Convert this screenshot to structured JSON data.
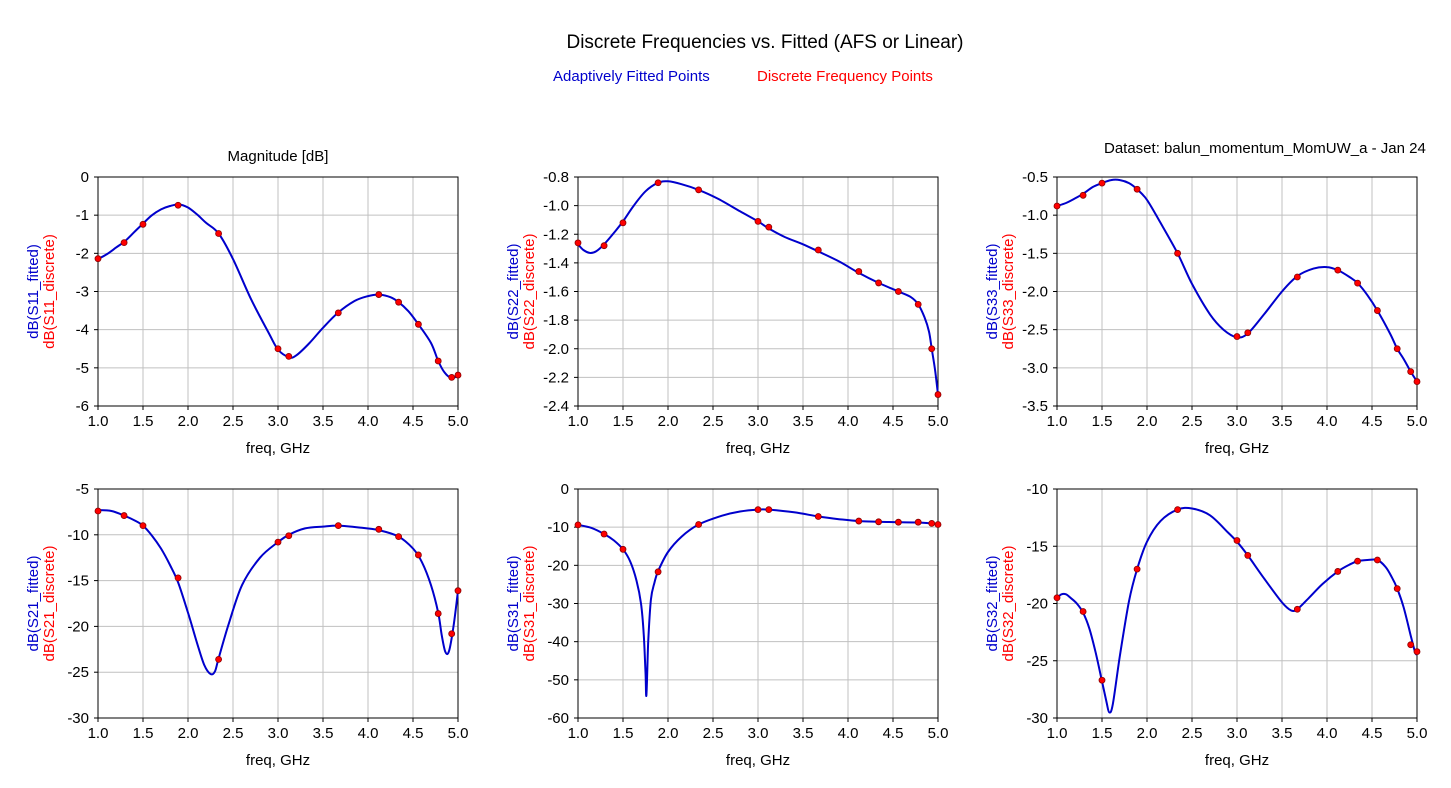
{
  "page": {
    "title": "Discrete Frequencies vs. Fitted (AFS or Linear)",
    "legend_fitted": "Adaptively Fitted Points",
    "legend_discrete": "Discrete Frequency Points",
    "header_left": "Magnitude [dB]",
    "header_right": "Dataset: balun_momentum_MomUW_a - Jan 24"
  },
  "colors": {
    "fitted": "#0000cc",
    "discrete": "#ff0000",
    "grid": "#c0c0c0",
    "frame": "#000000"
  },
  "chart_data": [
    {
      "type": "line",
      "xlabel": "freq, GHz",
      "ylabel_fitted": "dB(S11_fitted)",
      "ylabel_discrete": "dB(S11_discrete)",
      "xlim": [
        1.0,
        5.0
      ],
      "ylim": [
        -6,
        0
      ],
      "xticks": [
        1.0,
        1.5,
        2.0,
        2.5,
        3.0,
        3.5,
        4.0,
        4.5,
        5.0
      ],
      "xtick_labels": [
        "1.0",
        "1.5",
        "2.0",
        "2.5",
        "3.0",
        "3.5",
        "4.0",
        "4.5",
        "5.0"
      ],
      "yticks": [
        0,
        -1,
        -2,
        -3,
        -4,
        -5,
        -6
      ],
      "ytick_labels": [
        "0",
        "-1",
        "-2",
        "-3",
        "-4",
        "-5",
        "-6"
      ],
      "grid": true,
      "series": [
        {
          "name": "dB(S11_fitted)",
          "x": [
            1.0,
            1.1,
            1.2,
            1.3,
            1.4,
            1.5,
            1.6,
            1.7,
            1.8,
            1.9,
            2.0,
            2.1,
            2.2,
            2.34,
            2.5,
            2.7,
            2.9,
            3.0,
            3.12,
            3.2,
            3.35,
            3.5,
            3.67,
            3.85,
            4.0,
            4.12,
            4.25,
            4.34,
            4.45,
            4.56,
            4.7,
            4.78,
            4.85,
            4.93,
            5.0
          ],
          "y": [
            -2.15,
            -2.02,
            -1.85,
            -1.68,
            -1.45,
            -1.22,
            -1.0,
            -0.85,
            -0.76,
            -0.72,
            -0.8,
            -0.98,
            -1.2,
            -1.48,
            -2.15,
            -3.2,
            -4.1,
            -4.52,
            -4.72,
            -4.68,
            -4.35,
            -3.95,
            -3.55,
            -3.25,
            -3.12,
            -3.08,
            -3.15,
            -3.28,
            -3.52,
            -3.86,
            -4.35,
            -4.82,
            -5.12,
            -5.27,
            -5.2
          ]
        },
        {
          "name": "dB(S11_discrete)",
          "x": [
            1.0,
            1.29,
            1.5,
            1.89,
            2.34,
            3.0,
            3.12,
            3.67,
            4.12,
            4.34,
            4.56,
            4.78,
            4.93,
            5.0
          ],
          "y": [
            -2.14,
            -1.72,
            -1.24,
            -0.74,
            -1.48,
            -4.5,
            -4.7,
            -3.56,
            -3.08,
            -3.28,
            -3.86,
            -4.82,
            -5.25,
            -5.19
          ]
        }
      ]
    },
    {
      "type": "line",
      "xlabel": "freq, GHz",
      "ylabel_fitted": "dB(S22_fitted)",
      "ylabel_discrete": "dB(S22_discrete)",
      "xlim": [
        1.0,
        5.0
      ],
      "ylim": [
        -2.4,
        -0.8
      ],
      "xticks": [
        1.0,
        1.5,
        2.0,
        2.5,
        3.0,
        3.5,
        4.0,
        4.5,
        5.0
      ],
      "xtick_labels": [
        "1.0",
        "1.5",
        "2.0",
        "2.5",
        "3.0",
        "3.5",
        "4.0",
        "4.5",
        "5.0"
      ],
      "yticks": [
        -0.8,
        -1.0,
        -1.2,
        -1.4,
        -1.6,
        -1.8,
        -2.0,
        -2.2,
        -2.4
      ],
      "ytick_labels": [
        "-0.8",
        "-1.0",
        "-1.2",
        "-1.4",
        "-1.6",
        "-1.8",
        "-2.0",
        "-2.2",
        "-2.4"
      ],
      "grid": true,
      "series": [
        {
          "name": "dB(S22_fitted)",
          "x": [
            1.0,
            1.06,
            1.13,
            1.2,
            1.29,
            1.4,
            1.5,
            1.62,
            1.75,
            1.89,
            2.0,
            2.15,
            2.34,
            2.55,
            2.8,
            3.0,
            3.12,
            3.3,
            3.5,
            3.67,
            3.9,
            4.12,
            4.34,
            4.56,
            4.7,
            4.78,
            4.85,
            4.9,
            4.93,
            4.97,
            5.0
          ],
          "y": [
            -1.27,
            -1.31,
            -1.33,
            -1.32,
            -1.27,
            -1.19,
            -1.11,
            -1.0,
            -0.9,
            -0.84,
            -0.83,
            -0.85,
            -0.89,
            -0.95,
            -1.04,
            -1.11,
            -1.16,
            -1.22,
            -1.27,
            -1.32,
            -1.39,
            -1.47,
            -1.54,
            -1.6,
            -1.64,
            -1.69,
            -1.78,
            -1.88,
            -2.0,
            -2.16,
            -2.32
          ]
        },
        {
          "name": "dB(S22_discrete)",
          "x": [
            1.0,
            1.29,
            1.5,
            1.89,
            2.34,
            3.0,
            3.12,
            3.67,
            4.12,
            4.34,
            4.56,
            4.78,
            4.93,
            5.0
          ],
          "y": [
            -1.26,
            -1.28,
            -1.12,
            -0.84,
            -0.89,
            -1.11,
            -1.15,
            -1.31,
            -1.46,
            -1.54,
            -1.6,
            -1.69,
            -2.0,
            -2.32
          ]
        }
      ]
    },
    {
      "type": "line",
      "xlabel": "freq, GHz",
      "ylabel_fitted": "dB(S33_fitted)",
      "ylabel_discrete": "dB(S33_discrete)",
      "xlim": [
        1.0,
        5.0
      ],
      "ylim": [
        -3.5,
        -0.5
      ],
      "xticks": [
        1.0,
        1.5,
        2.0,
        2.5,
        3.0,
        3.5,
        4.0,
        4.5,
        5.0
      ],
      "xtick_labels": [
        "1.0",
        "1.5",
        "2.0",
        "2.5",
        "3.0",
        "3.5",
        "4.0",
        "4.5",
        "5.0"
      ],
      "yticks": [
        -0.5,
        -1.0,
        -1.5,
        -2.0,
        -2.5,
        -3.0,
        -3.5
      ],
      "ytick_labels": [
        "-0.5",
        "-1.0",
        "-1.5",
        "-2.0",
        "-2.5",
        "-3.0",
        "-3.5"
      ],
      "grid": true,
      "series": [
        {
          "name": "dB(S33_fitted)",
          "x": [
            1.0,
            1.1,
            1.2,
            1.29,
            1.4,
            1.5,
            1.6,
            1.7,
            1.8,
            1.89,
            2.0,
            2.15,
            2.34,
            2.5,
            2.7,
            2.85,
            3.0,
            3.12,
            3.3,
            3.5,
            3.67,
            3.85,
            4.0,
            4.12,
            4.25,
            4.34,
            4.45,
            4.56,
            4.7,
            4.78,
            4.85,
            4.93,
            5.0
          ],
          "y": [
            -0.88,
            -0.84,
            -0.78,
            -0.72,
            -0.63,
            -0.58,
            -0.54,
            -0.54,
            -0.58,
            -0.66,
            -0.8,
            -1.1,
            -1.5,
            -1.9,
            -2.3,
            -2.5,
            -2.6,
            -2.55,
            -2.3,
            -2.0,
            -1.8,
            -1.7,
            -1.68,
            -1.72,
            -1.81,
            -1.89,
            -2.05,
            -2.25,
            -2.55,
            -2.75,
            -2.88,
            -3.05,
            -3.18
          ]
        },
        {
          "name": "dB(S33_discrete)",
          "x": [
            1.0,
            1.29,
            1.5,
            1.89,
            2.34,
            3.0,
            3.12,
            3.67,
            4.12,
            4.34,
            4.56,
            4.78,
            4.93,
            5.0
          ],
          "y": [
            -0.88,
            -0.74,
            -0.58,
            -0.66,
            -1.5,
            -2.59,
            -2.54,
            -1.81,
            -1.72,
            -1.89,
            -2.25,
            -2.75,
            -3.05,
            -3.18
          ]
        }
      ]
    },
    {
      "type": "line",
      "xlabel": "freq, GHz",
      "ylabel_fitted": "dB(S21_fitted)",
      "ylabel_discrete": "dB(S21_discrete)",
      "xlim": [
        1.0,
        5.0
      ],
      "ylim": [
        -30,
        -5
      ],
      "xticks": [
        1.0,
        1.5,
        2.0,
        2.5,
        3.0,
        3.5,
        4.0,
        4.5,
        5.0
      ],
      "xtick_labels": [
        "1.0",
        "1.5",
        "2.0",
        "2.5",
        "3.0",
        "3.5",
        "4.0",
        "4.5",
        "5.0"
      ],
      "yticks": [
        -5,
        -10,
        -15,
        -20,
        -25,
        -30
      ],
      "ytick_labels": [
        "-5",
        "-10",
        "-15",
        "-20",
        "-25",
        "-30"
      ],
      "grid": true,
      "series": [
        {
          "name": "dB(S21_fitted)",
          "x": [
            1.0,
            1.15,
            1.29,
            1.4,
            1.5,
            1.6,
            1.7,
            1.8,
            1.89,
            2.0,
            2.1,
            2.18,
            2.25,
            2.3,
            2.34,
            2.45,
            2.6,
            2.8,
            3.0,
            3.12,
            3.3,
            3.5,
            3.67,
            3.9,
            4.12,
            4.34,
            4.5,
            4.6,
            4.7,
            4.78,
            4.82,
            4.86,
            4.9,
            4.95,
            5.0
          ],
          "y": [
            -7.3,
            -7.4,
            -7.9,
            -8.4,
            -9.0,
            -10.1,
            -11.5,
            -13.3,
            -15.2,
            -18.5,
            -21.8,
            -24.2,
            -25.2,
            -24.9,
            -23.5,
            -19.8,
            -15.5,
            -12.5,
            -10.8,
            -10.0,
            -9.3,
            -9.1,
            -9.0,
            -9.2,
            -9.5,
            -10.2,
            -11.5,
            -13.0,
            -15.5,
            -18.5,
            -21.0,
            -22.8,
            -22.7,
            -20.0,
            -16.1
          ]
        },
        {
          "name": "dB(S21_discrete)",
          "x": [
            1.0,
            1.29,
            1.5,
            1.89,
            2.34,
            3.0,
            3.12,
            3.67,
            4.12,
            4.34,
            4.56,
            4.78,
            4.93,
            5.0
          ],
          "y": [
            -7.4,
            -7.9,
            -9.0,
            -14.7,
            -23.6,
            -10.8,
            -10.1,
            -9.0,
            -9.4,
            -10.2,
            -12.2,
            -18.6,
            -20.8,
            -16.1
          ]
        }
      ]
    },
    {
      "type": "line",
      "xlabel": "freq, GHz",
      "ylabel_fitted": "dB(S31_fitted)",
      "ylabel_discrete": "dB(S31_discrete)",
      "xlim": [
        1.0,
        5.0
      ],
      "ylim": [
        -60,
        0
      ],
      "xticks": [
        1.0,
        1.5,
        2.0,
        2.5,
        3.0,
        3.5,
        4.0,
        4.5,
        5.0
      ],
      "xtick_labels": [
        "1.0",
        "1.5",
        "2.0",
        "2.5",
        "3.0",
        "3.5",
        "4.0",
        "4.5",
        "5.0"
      ],
      "yticks": [
        0,
        -10,
        -20,
        -30,
        -40,
        -50,
        -60
      ],
      "ytick_labels": [
        "0",
        "-10",
        "-20",
        "-30",
        "-40",
        "-50",
        "-60"
      ],
      "grid": true,
      "series": [
        {
          "name": "dB(S31_fitted)",
          "x": [
            1.0,
            1.15,
            1.29,
            1.4,
            1.5,
            1.58,
            1.65,
            1.7,
            1.73,
            1.75,
            1.76,
            1.78,
            1.81,
            1.85,
            1.89,
            2.0,
            2.15,
            2.34,
            2.6,
            2.8,
            3.0,
            3.12,
            3.4,
            3.67,
            3.9,
            4.12,
            4.34,
            4.56,
            4.78,
            4.93,
            5.0
          ],
          "y": [
            -9.4,
            -10.2,
            -11.8,
            -13.5,
            -15.8,
            -19.0,
            -24.0,
            -30.0,
            -38.0,
            -48.0,
            -54.0,
            -40.0,
            -29.0,
            -24.5,
            -21.5,
            -16.5,
            -12.5,
            -9.3,
            -7.0,
            -5.9,
            -5.4,
            -5.4,
            -6.1,
            -7.2,
            -7.9,
            -8.4,
            -8.6,
            -8.7,
            -8.8,
            -9.0,
            -9.3
          ]
        },
        {
          "name": "dB(S31_discrete)",
          "x": [
            1.0,
            1.29,
            1.5,
            1.89,
            2.34,
            3.0,
            3.12,
            3.67,
            4.12,
            4.34,
            4.56,
            4.78,
            4.93,
            5.0
          ],
          "y": [
            -9.4,
            -11.8,
            -15.8,
            -21.7,
            -9.3,
            -5.4,
            -5.4,
            -7.2,
            -8.4,
            -8.6,
            -8.7,
            -8.7,
            -9.0,
            -9.3
          ]
        }
      ]
    },
    {
      "type": "line",
      "xlabel": "freq, GHz",
      "ylabel_fitted": "dB(S32_fitted)",
      "ylabel_discrete": "dB(S32_discrete)",
      "xlim": [
        1.0,
        5.0
      ],
      "ylim": [
        -30,
        -10
      ],
      "xticks": [
        1.0,
        1.5,
        2.0,
        2.5,
        3.0,
        3.5,
        4.0,
        4.5,
        5.0
      ],
      "xtick_labels": [
        "1.0",
        "1.5",
        "2.0",
        "2.5",
        "3.0",
        "3.5",
        "4.0",
        "4.5",
        "5.0"
      ],
      "yticks": [
        -10,
        -15,
        -20,
        -25,
        -30
      ],
      "ytick_labels": [
        "-10",
        "-15",
        "-20",
        "-25",
        "-30"
      ],
      "grid": true,
      "series": [
        {
          "name": "dB(S32_fitted)",
          "x": [
            1.0,
            1.05,
            1.1,
            1.15,
            1.22,
            1.29,
            1.36,
            1.43,
            1.5,
            1.55,
            1.58,
            1.62,
            1.7,
            1.8,
            1.89,
            2.0,
            2.15,
            2.34,
            2.5,
            2.7,
            2.9,
            3.0,
            3.12,
            3.3,
            3.5,
            3.6,
            3.67,
            3.8,
            3.95,
            4.12,
            4.25,
            4.34,
            4.45,
            4.56,
            4.65,
            4.72,
            4.78,
            4.85,
            4.93,
            4.98,
            5.0
          ],
          "y": [
            -19.5,
            -19.2,
            -19.2,
            -19.5,
            -20.0,
            -20.8,
            -22.2,
            -24.3,
            -26.8,
            -28.6,
            -29.5,
            -28.8,
            -24.5,
            -19.8,
            -17.0,
            -14.6,
            -12.8,
            -11.8,
            -11.7,
            -12.3,
            -13.8,
            -14.6,
            -15.8,
            -17.8,
            -19.9,
            -20.6,
            -20.5,
            -19.5,
            -18.3,
            -17.2,
            -16.6,
            -16.3,
            -16.2,
            -16.2,
            -16.8,
            -17.7,
            -18.7,
            -20.3,
            -22.8,
            -24.3,
            -24.4
          ]
        },
        {
          "name": "dB(S32_discrete)",
          "x": [
            1.0,
            1.29,
            1.5,
            1.89,
            2.34,
            3.0,
            3.12,
            3.67,
            4.12,
            4.34,
            4.56,
            4.78,
            4.93,
            5.0
          ],
          "y": [
            -19.5,
            -20.7,
            -26.7,
            -17.0,
            -11.8,
            -14.5,
            -15.8,
            -20.5,
            -17.2,
            -16.3,
            -16.2,
            -18.7,
            -23.6,
            -24.2
          ]
        }
      ]
    }
  ]
}
